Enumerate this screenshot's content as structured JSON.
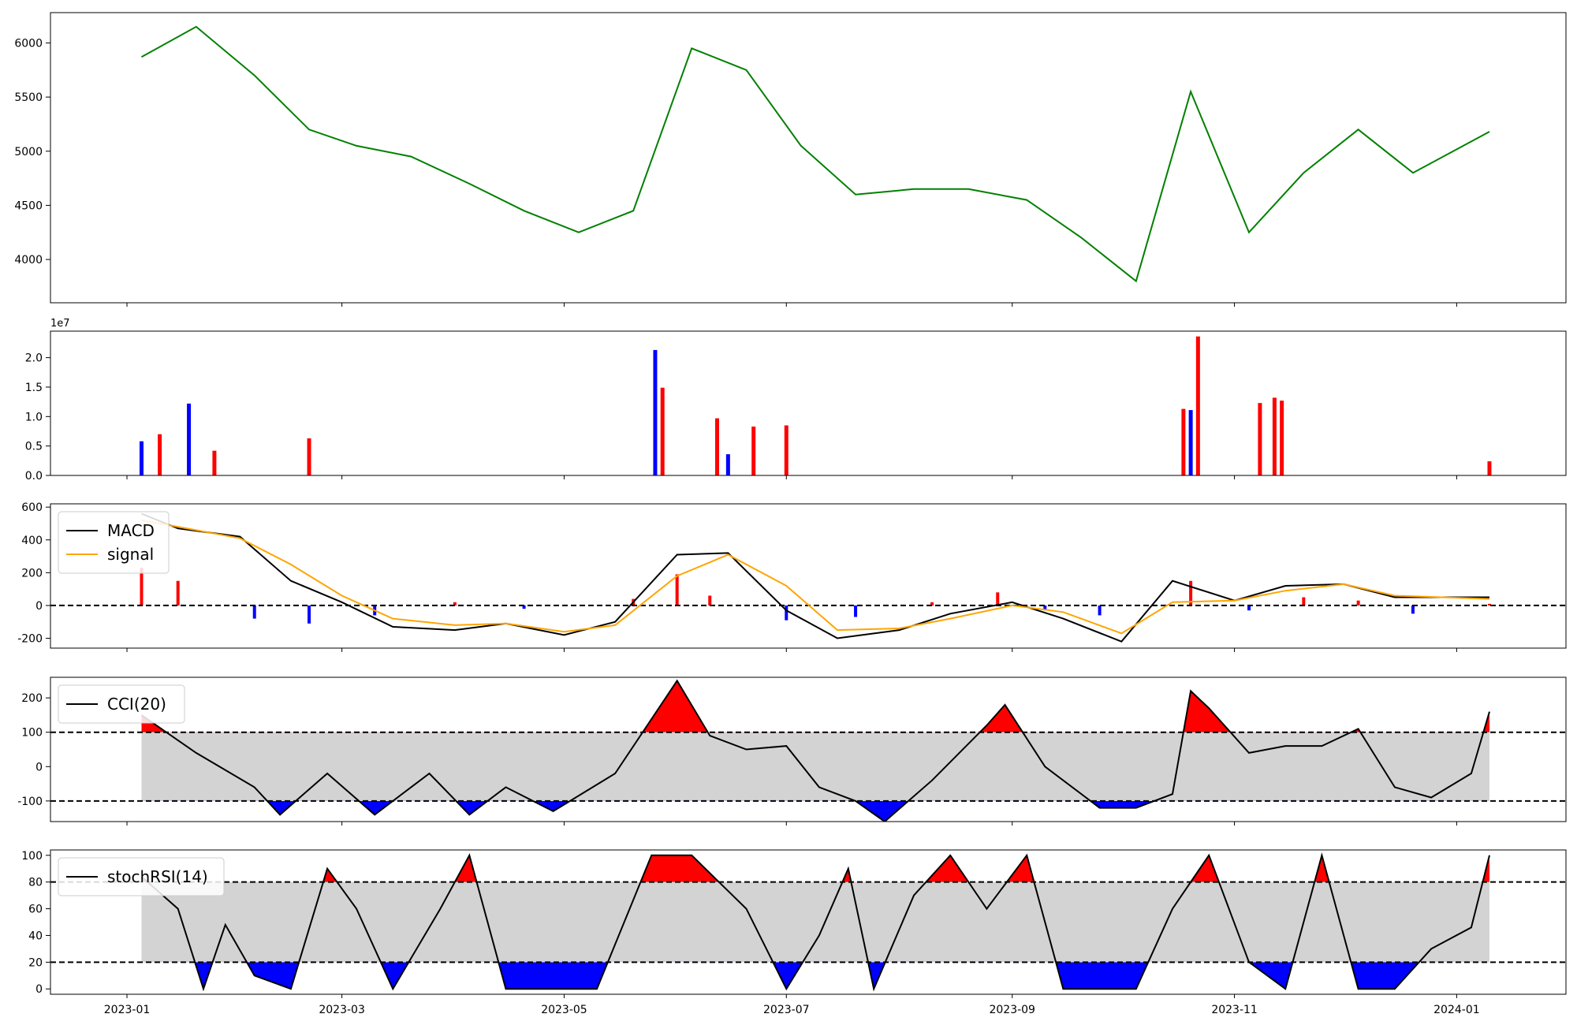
{
  "chart_data": [
    {
      "panel": "price",
      "type": "line",
      "color": "#008000",
      "ylim": [
        3600,
        6280
      ],
      "yticks": [
        4000,
        4500,
        5000,
        5500,
        6000
      ],
      "x": [
        "2023-01-05",
        "2023-01-20",
        "2023-02-05",
        "2023-02-20",
        "2023-03-05",
        "2023-03-20",
        "2023-04-05",
        "2023-04-20",
        "2023-05-05",
        "2023-05-20",
        "2023-06-05",
        "2023-06-20",
        "2023-07-05",
        "2023-07-20",
        "2023-08-05",
        "2023-08-20",
        "2023-09-05",
        "2023-09-20",
        "2023-10-05",
        "2023-10-20",
        "2023-11-05",
        "2023-11-20",
        "2023-12-05",
        "2023-12-20",
        "2024-01-10"
      ],
      "values": [
        5870,
        6150,
        5700,
        5200,
        5050,
        4950,
        4700,
        4450,
        4250,
        4450,
        5950,
        5750,
        5050,
        4600,
        4650,
        4650,
        4550,
        4200,
        3800,
        5550,
        4250,
        4800,
        5200,
        4800,
        5180
      ]
    },
    {
      "panel": "volume",
      "type": "bar",
      "multiplier_label": "1e7",
      "ylim": [
        0,
        24500000
      ],
      "yticks": [
        0,
        5000000,
        10000000,
        15000000,
        20000000
      ],
      "ytick_labels": [
        "0.0",
        "0.5",
        "1.0",
        "1.5",
        "2.0"
      ],
      "colors": {
        "up": "#ff0000",
        "down": "#0000ff"
      },
      "x": [
        "2023-01-05",
        "2023-01-10",
        "2023-01-18",
        "2023-01-25",
        "2023-02-20",
        "2023-05-26",
        "2023-05-28",
        "2023-06-12",
        "2023-06-15",
        "2023-06-22",
        "2023-07-01",
        "2023-10-18",
        "2023-10-20",
        "2023-10-22",
        "2023-11-08",
        "2023-11-12",
        "2023-11-14",
        "2024-01-10"
      ],
      "values": [
        5800000,
        7000000,
        12200000,
        4200000,
        6300000,
        21300000,
        14900000,
        9700000,
        3600000,
        8300000,
        8500000,
        11300000,
        11100000,
        23600000,
        12300000,
        13200000,
        12700000,
        2400000
      ],
      "directions": [
        "down",
        "up",
        "down",
        "up",
        "up",
        "down",
        "up",
        "up",
        "down",
        "up",
        "up",
        "up",
        "down",
        "up",
        "up",
        "up",
        "up",
        "up"
      ]
    },
    {
      "panel": "macd",
      "type": "line",
      "ylim": [
        -260,
        620
      ],
      "yticks": [
        -200,
        0,
        200,
        400,
        600
      ],
      "reference_line": 0,
      "legend": "upper left",
      "x": [
        "2023-01-05",
        "2023-01-15",
        "2023-02-01",
        "2023-02-15",
        "2023-03-01",
        "2023-03-15",
        "2023-04-01",
        "2023-04-15",
        "2023-05-01",
        "2023-05-15",
        "2023-06-01",
        "2023-06-15",
        "2023-07-01",
        "2023-07-15",
        "2023-08-01",
        "2023-08-15",
        "2023-09-01",
        "2023-09-15",
        "2023-10-01",
        "2023-10-15",
        "2023-11-01",
        "2023-11-15",
        "2023-12-01",
        "2023-12-15",
        "2024-01-10"
      ],
      "series": [
        {
          "name": "MACD",
          "color": "#000000",
          "values": [
            560,
            470,
            420,
            150,
            20,
            -130,
            -150,
            -110,
            -180,
            -100,
            310,
            320,
            -30,
            -200,
            -150,
            -50,
            20,
            -80,
            -220,
            150,
            30,
            120,
            130,
            50,
            50
          ]
        },
        {
          "name": "signal",
          "color": "#ffa500",
          "values": [
            520,
            480,
            410,
            250,
            60,
            -80,
            -120,
            -110,
            -160,
            -120,
            180,
            310,
            120,
            -150,
            -140,
            -80,
            0,
            -40,
            -170,
            20,
            30,
            90,
            130,
            60,
            40
          ]
        }
      ],
      "histogram": {
        "colors": {
          "positive": "#ff0000",
          "negative": "#0000ff"
        },
        "x": [
          "2023-01-05",
          "2023-01-15",
          "2023-02-05",
          "2023-02-20",
          "2023-03-10",
          "2023-04-01",
          "2023-04-20",
          "2023-05-20",
          "2023-06-01",
          "2023-06-10",
          "2023-07-01",
          "2023-07-20",
          "2023-08-10",
          "2023-08-28",
          "2023-09-10",
          "2023-09-25",
          "2023-10-20",
          "2023-11-05",
          "2023-11-20",
          "2023-12-05",
          "2023-12-20",
          "2024-01-10"
        ],
        "values": [
          230,
          150,
          -80,
          -110,
          -60,
          20,
          -20,
          40,
          190,
          60,
          -90,
          -70,
          20,
          80,
          -30,
          -60,
          150,
          -30,
          50,
          30,
          -50,
          10
        ]
      }
    },
    {
      "panel": "cci",
      "type": "line",
      "ylim": [
        -160,
        260
      ],
      "yticks": [
        -100,
        0,
        100,
        200
      ],
      "thresholds": [
        100,
        -100
      ],
      "band_color": "#d3d3d3",
      "fill_colors": {
        "above": "#ff0000",
        "below": "#0000ff"
      },
      "legend": "upper left",
      "series": [
        {
          "name": "CCI(20)",
          "color": "#000000"
        }
      ],
      "x": [
        "2023-01-05",
        "2023-01-20",
        "2023-02-05",
        "2023-02-12",
        "2023-02-25",
        "2023-03-10",
        "2023-03-25",
        "2023-04-05",
        "2023-04-15",
        "2023-04-28",
        "2023-05-15",
        "2023-06-01",
        "2023-06-10",
        "2023-06-20",
        "2023-07-01",
        "2023-07-10",
        "2023-07-20",
        "2023-07-28",
        "2023-08-10",
        "2023-08-25",
        "2023-08-30",
        "2023-09-10",
        "2023-09-25",
        "2023-10-05",
        "2023-10-15",
        "2023-10-20",
        "2023-10-25",
        "2023-11-05",
        "2023-11-15",
        "2023-11-25",
        "2023-12-05",
        "2023-12-15",
        "2023-12-25",
        "2024-01-05",
        "2024-01-10"
      ],
      "values": [
        150,
        40,
        -60,
        -140,
        -20,
        -140,
        -20,
        -140,
        -60,
        -130,
        -20,
        250,
        90,
        50,
        60,
        -60,
        -100,
        -160,
        -40,
        120,
        180,
        0,
        -120,
        -120,
        -80,
        220,
        170,
        40,
        60,
        60,
        110,
        -60,
        -90,
        -20,
        160
      ]
    },
    {
      "panel": "stochrsi",
      "type": "line",
      "ylim": [
        -4,
        104
      ],
      "yticks": [
        0,
        20,
        40,
        60,
        80,
        100
      ],
      "thresholds": [
        80,
        20
      ],
      "band_color": "#d3d3d3",
      "fill_colors": {
        "above": "#ff0000",
        "below": "#0000ff"
      },
      "legend": "upper left",
      "series": [
        {
          "name": "stochRSI(14)",
          "color": "#000000"
        }
      ],
      "x": [
        "2023-01-05",
        "2023-01-15",
        "2023-01-22",
        "2023-01-28",
        "2023-02-05",
        "2023-02-15",
        "2023-02-25",
        "2023-03-05",
        "2023-03-15",
        "2023-03-28",
        "2023-04-05",
        "2023-04-15",
        "2023-04-28",
        "2023-05-10",
        "2023-05-25",
        "2023-06-05",
        "2023-06-20",
        "2023-07-01",
        "2023-07-10",
        "2023-07-18",
        "2023-07-25",
        "2023-08-05",
        "2023-08-15",
        "2023-08-25",
        "2023-09-05",
        "2023-09-15",
        "2023-09-25",
        "2023-10-05",
        "2023-10-15",
        "2023-10-25",
        "2023-11-05",
        "2023-11-15",
        "2023-11-25",
        "2023-12-05",
        "2023-12-15",
        "2023-12-25",
        "2024-01-05",
        "2024-01-10"
      ],
      "values": [
        84,
        60,
        0,
        48,
        10,
        0,
        90,
        60,
        0,
        60,
        100,
        0,
        0,
        0,
        100,
        100,
        60,
        0,
        40,
        90,
        0,
        70,
        100,
        60,
        100,
        0,
        0,
        0,
        60,
        100,
        20,
        0,
        100,
        0,
        0,
        30,
        46,
        100
      ]
    }
  ],
  "xaxis": {
    "ticks": [
      "2023-01-01",
      "2023-03-01",
      "2023-05-01",
      "2023-07-01",
      "2023-09-01",
      "2023-11-01",
      "2024-01-01"
    ],
    "tick_labels": [
      "2023-01",
      "2023-03",
      "2023-05",
      "2023-07",
      "2023-09",
      "2023-11",
      "2024-01"
    ],
    "range": [
      "2022-12-11",
      "2024-01-31"
    ]
  }
}
